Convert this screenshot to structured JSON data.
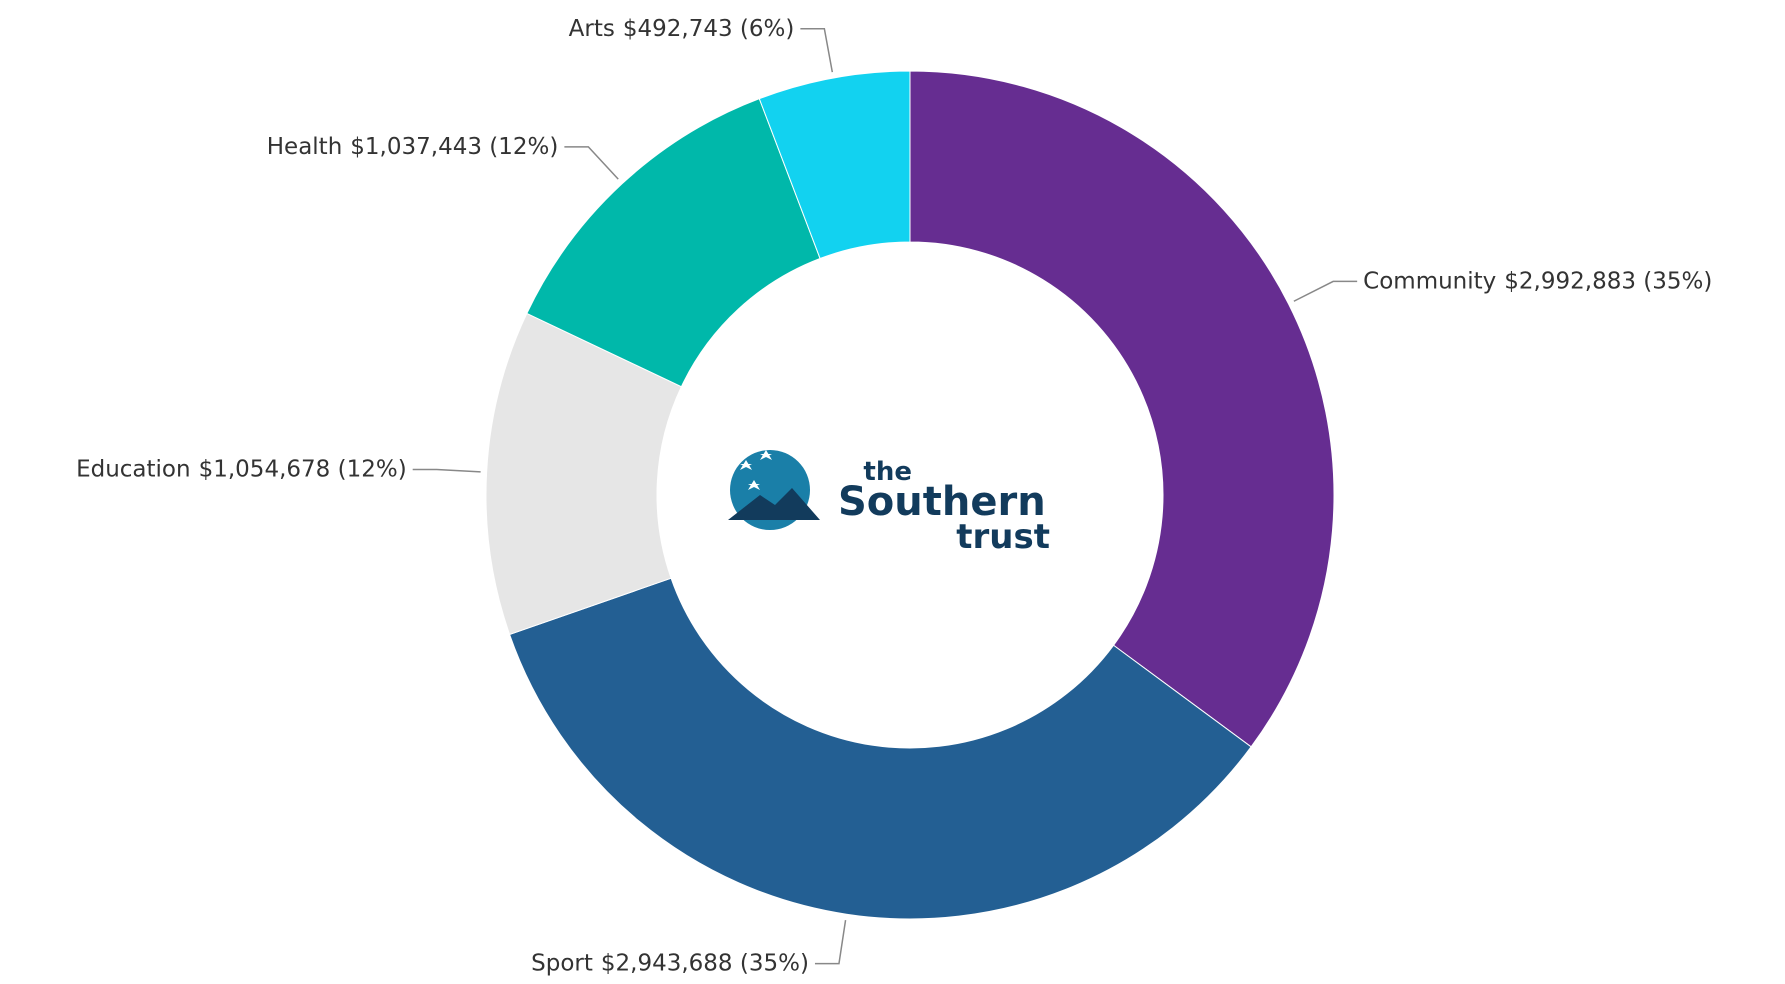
{
  "chart_data": {
    "type": "donut",
    "categories": [
      "Community",
      "Sport",
      "Education",
      "Health",
      "Arts"
    ],
    "values": [
      2992883,
      2943688,
      1054678,
      1037443,
      492743
    ],
    "value_labels": [
      "$2,992,883 (35%)",
      "$2,943,688 (35%)",
      "$1,054,678 (12%)",
      "$1,037,443 (12%)",
      "$492,743 (6%)"
    ],
    "colors": [
      "#662d91",
      "#235f93",
      "#e6e6e6",
      "#00b8aa",
      "#12d2f0"
    ]
  },
  "logo": {
    "lines": [
      "the",
      "Southern",
      "trust"
    ]
  }
}
